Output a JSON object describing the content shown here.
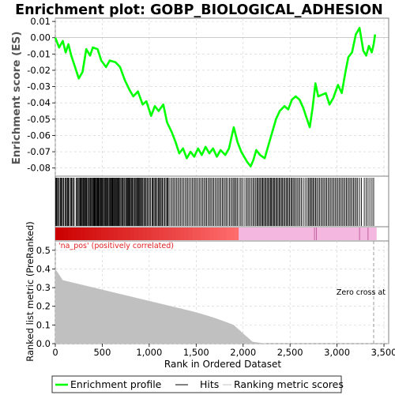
{
  "chart_data": {
    "type": "line",
    "title": "Enrichment plot: GOBP_BIOLOGICAL_ADHESION",
    "ylabel_top": "Enrichment score (ES)",
    "ylabel_bottom": "Ranked list metric (PreRanked)",
    "xlabel": "Rank in Ordered Dataset",
    "xlim": [
      0,
      3550
    ],
    "ylim_es": [
      -0.085,
      0.012
    ],
    "ylim_metric": [
      0,
      0.55
    ],
    "x_ticks": [
      "0",
      "500",
      "1,000",
      "1,500",
      "2,000",
      "2,500",
      "3,000",
      "3,500"
    ],
    "y_ticks_es": [
      "0.01",
      "0.00",
      "-0.01",
      "-0.02",
      "-0.03",
      "-0.04",
      "-0.05",
      "-0.06",
      "-0.07",
      "-0.08"
    ],
    "y_ticks_metric": [
      "0.0",
      "0.1",
      "0.2",
      "0.3",
      "0.4",
      "0.5"
    ],
    "annotation_pos": "'na_pos' (positively correlated)",
    "annotation_zero": "Zero cross at",
    "zero_cross": 3390,
    "grid": true,
    "colors": {
      "enrichment": "#00ff00",
      "hits": "#000000",
      "metric_fill": "#c0c0c0",
      "pos_color": "#cc0000",
      "neg_color": "#f4b8e0"
    },
    "series": [
      {
        "name": "Enrichment profile",
        "points": [
          [
            0,
            0.0
          ],
          [
            40,
            -0.006
          ],
          [
            80,
            -0.002
          ],
          [
            110,
            -0.009
          ],
          [
            140,
            -0.004
          ],
          [
            170,
            -0.011
          ],
          [
            210,
            -0.018
          ],
          [
            250,
            -0.025
          ],
          [
            290,
            -0.021
          ],
          [
            330,
            -0.007
          ],
          [
            370,
            -0.011
          ],
          [
            400,
            -0.006
          ],
          [
            450,
            -0.007
          ],
          [
            490,
            -0.014
          ],
          [
            540,
            -0.018
          ],
          [
            580,
            -0.014
          ],
          [
            640,
            -0.015
          ],
          [
            690,
            -0.018
          ],
          [
            740,
            -0.026
          ],
          [
            790,
            -0.032
          ],
          [
            830,
            -0.036
          ],
          [
            880,
            -0.033
          ],
          [
            930,
            -0.041
          ],
          [
            970,
            -0.039
          ],
          [
            1020,
            -0.048
          ],
          [
            1060,
            -0.042
          ],
          [
            1100,
            -0.045
          ],
          [
            1150,
            -0.041
          ],
          [
            1190,
            -0.052
          ],
          [
            1240,
            -0.058
          ],
          [
            1280,
            -0.064
          ],
          [
            1320,
            -0.071
          ],
          [
            1360,
            -0.068
          ],
          [
            1400,
            -0.074
          ],
          [
            1440,
            -0.07
          ],
          [
            1480,
            -0.073
          ],
          [
            1520,
            -0.068
          ],
          [
            1560,
            -0.072
          ],
          [
            1600,
            -0.067
          ],
          [
            1640,
            -0.071
          ],
          [
            1680,
            -0.068
          ],
          [
            1720,
            -0.073
          ],
          [
            1760,
            -0.069
          ],
          [
            1810,
            -0.072
          ],
          [
            1850,
            -0.068
          ],
          [
            1880,
            -0.06
          ],
          [
            1900,
            -0.055
          ],
          [
            1940,
            -0.064
          ],
          [
            1980,
            -0.07
          ],
          [
            2040,
            -0.076
          ],
          [
            2080,
            -0.079
          ],
          [
            2110,
            -0.075
          ],
          [
            2140,
            -0.069
          ],
          [
            2180,
            -0.072
          ],
          [
            2230,
            -0.074
          ],
          [
            2270,
            -0.066
          ],
          [
            2310,
            -0.058
          ],
          [
            2350,
            -0.05
          ],
          [
            2390,
            -0.045
          ],
          [
            2440,
            -0.042
          ],
          [
            2480,
            -0.044
          ],
          [
            2520,
            -0.038
          ],
          [
            2560,
            -0.036
          ],
          [
            2600,
            -0.038
          ],
          [
            2640,
            -0.043
          ],
          [
            2680,
            -0.05
          ],
          [
            2710,
            -0.055
          ],
          [
            2740,
            -0.043
          ],
          [
            2770,
            -0.028
          ],
          [
            2800,
            -0.036
          ],
          [
            2840,
            -0.035
          ],
          [
            2880,
            -0.034
          ],
          [
            2920,
            -0.041
          ],
          [
            2960,
            -0.037
          ],
          [
            3010,
            -0.029
          ],
          [
            3050,
            -0.034
          ],
          [
            3090,
            -0.021
          ],
          [
            3120,
            -0.012
          ],
          [
            3160,
            -0.009
          ],
          [
            3200,
            0.002
          ],
          [
            3240,
            0.006
          ],
          [
            3280,
            -0.008
          ],
          [
            3310,
            -0.011
          ],
          [
            3340,
            -0.005
          ],
          [
            3370,
            -0.009
          ],
          [
            3390,
            -0.004
          ],
          [
            3405,
            0.002
          ]
        ]
      },
      {
        "name": "Hits"
      },
      {
        "name": "Ranking metric scores"
      }
    ],
    "hit_positions": [
      5,
      12,
      20,
      33,
      41,
      55,
      62,
      70,
      84,
      90,
      104,
      112,
      125,
      133,
      140,
      150,
      165,
      171,
      178,
      193,
      200,
      222,
      228,
      240,
      251,
      261,
      267,
      275,
      281,
      292,
      299,
      306,
      316,
      322,
      330,
      336,
      348,
      354,
      365,
      375,
      381,
      389,
      400,
      405,
      413,
      420,
      426,
      435,
      441,
      449,
      455,
      461,
      469,
      478,
      484,
      492,
      500,
      510,
      520,
      528,
      535,
      541,
      550,
      556,
      565,
      575,
      585,
      592,
      600,
      607,
      612,
      620,
      628,
      636,
      642,
      650,
      658,
      665,
      674,
      680,
      690,
      700,
      712,
      720,
      731,
      740,
      752,
      760,
      770,
      778,
      786,
      795,
      806,
      814,
      822,
      831,
      843,
      850,
      860,
      870,
      878,
      888,
      897,
      906,
      915,
      924,
      933,
      945,
      957,
      966,
      978,
      990,
      1003,
      1015,
      1030,
      1040,
      1051,
      1062,
      1073,
      1085,
      1097,
      1108,
      1118,
      1128,
      1140,
      1152,
      1165,
      1178,
      1190,
      1200,
      1212,
      1230,
      1245,
      1260,
      1275,
      1290,
      1305,
      1320,
      1335,
      1350,
      1366,
      1382,
      1398,
      1412,
      1428,
      1445,
      1460,
      1476,
      1490,
      1505,
      1521,
      1537,
      1552,
      1568,
      1583,
      1598,
      1612,
      1628,
      1643,
      1657,
      1672,
      1687,
      1702,
      1718,
      1733,
      1748,
      1763,
      1778,
      1792,
      1808,
      1822,
      1838,
      1855,
      1870,
      1885,
      1900,
      1912,
      1926,
      1940,
      1958,
      1975,
      1990,
      2010,
      2030,
      2045,
      2060,
      2075,
      2092,
      2106,
      2120,
      2135,
      2148,
      2160,
      2172,
      2185,
      2197,
      2208,
      2220,
      2232,
      2244,
      2256,
      2268,
      2280,
      2291,
      2302,
      2313,
      2325,
      2336,
      2348,
      2360,
      2372,
      2384,
      2396,
      2408,
      2420,
      2432,
      2445,
      2458,
      2470,
      2482,
      2495,
      2508,
      2520,
      2533,
      2546,
      2560,
      2575,
      2590,
      2605,
      2620,
      2640,
      2660,
      2680,
      2695,
      2708,
      2720,
      2733,
      2745,
      2758,
      2772,
      2785,
      2800,
      2815,
      2830,
      2845,
      2860,
      2875,
      2890,
      2905,
      2920,
      2935,
      2950,
      2965,
      2980,
      2995,
      3010,
      3025,
      3040,
      3055,
      3070,
      3085,
      3100,
      3115,
      3130,
      3145,
      3160,
      3175,
      3190,
      3205,
      3220,
      3240,
      3260,
      3290,
      3310,
      3330,
      3350,
      3372,
      3390
    ]
  },
  "legend": {
    "items": [
      "Enrichment profile",
      "Hits",
      "Ranking metric scores"
    ]
  }
}
